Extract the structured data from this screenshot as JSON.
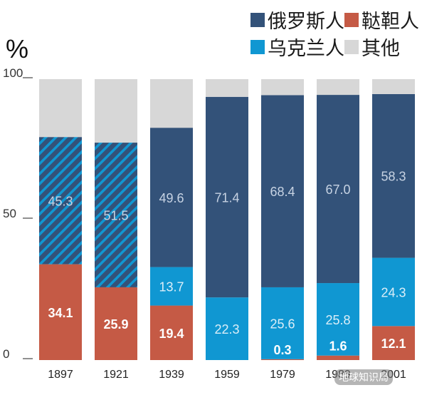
{
  "chart_data": {
    "type": "bar",
    "stacked": true,
    "ylabel": "%",
    "ylim": [
      0,
      100
    ],
    "yticks": [
      "100",
      "50",
      "0"
    ],
    "yticks_values": [
      100,
      50,
      0
    ],
    "categories": [
      "1897",
      "1921",
      "1939",
      "1959",
      "1979",
      "1989",
      "2001"
    ],
    "category_labels": [
      "1897",
      "1921",
      "1939",
      "1959",
      "1979",
      "1989",
      "2001"
    ],
    "series": [
      {
        "name": "鞑靼人",
        "color": "#c55a45",
        "values": [
          34.1,
          25.9,
          19.4,
          0,
          0.3,
          1.6,
          12.1
        ],
        "labels": [
          "34.1",
          "25.9",
          "19.4",
          "",
          "0.3",
          "1.6",
          "12.1"
        ]
      },
      {
        "name": "乌克兰人",
        "color": "#1097d2",
        "values": [
          0,
          0,
          13.7,
          22.3,
          25.6,
          25.8,
          24.3
        ],
        "labels": [
          "",
          "",
          "13.7",
          "22.3",
          "25.6",
          "25.8",
          "24.3"
        ]
      },
      {
        "name": "俄罗斯人",
        "color": "#335279",
        "values": [
          45.3,
          51.5,
          49.6,
          71.4,
          68.4,
          67.0,
          58.3
        ],
        "labels": [
          "45.3",
          "51.5",
          "49.6",
          "71.4",
          "68.4",
          "67.0",
          "58.3"
        ]
      },
      {
        "name": "其他",
        "color": "#d7d7d7",
        "values": [
          20.6,
          22.6,
          17.3,
          6.3,
          5.7,
          5.6,
          5.3
        ],
        "labels": [
          "",
          "",
          "",
          "",
          "",
          "",
          ""
        ]
      }
    ],
    "hatched_series_categories": [
      "1897",
      "1921"
    ],
    "legend": [
      {
        "name": "俄罗斯人",
        "color": "#335279"
      },
      {
        "name": "鞑靼人",
        "color": "#c55a45"
      },
      {
        "name": "乌克兰人",
        "color": "#1097d2"
      },
      {
        "name": "其他",
        "color": "#d7d7d7"
      }
    ],
    "legend_position": "top-right",
    "grid": false
  },
  "watermark": "地球知识局"
}
